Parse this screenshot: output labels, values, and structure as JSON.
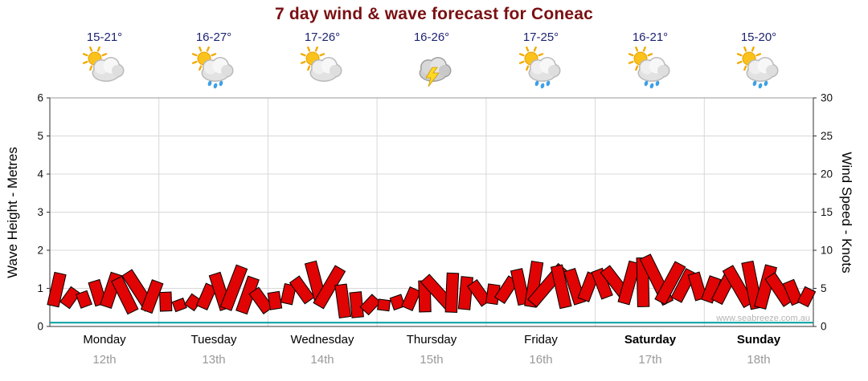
{
  "title": "7 day wind & wave forecast for Coneac",
  "watermark": "www.seabreeze.com.au",
  "colors": {
    "title": "#7a1012",
    "temps": "#1e2472",
    "grid": "#d8d8d8",
    "border": "#9a9a9a",
    "axis": "#333333",
    "flag": "#e00404",
    "flag_outline": "#000000",
    "wave_line": "#009e9e",
    "date": "#999999",
    "watermark": "#b4b4b4"
  },
  "days": [
    {
      "name": "Monday",
      "date": "12th",
      "temp": "15-21°",
      "icon": "sun-cloud"
    },
    {
      "name": "Tuesday",
      "date": "13th",
      "temp": "16-27°",
      "icon": "sun-cloud-showers"
    },
    {
      "name": "Wednesday",
      "date": "14th",
      "temp": "17-26°",
      "icon": "sun-cloud"
    },
    {
      "name": "Thursday",
      "date": "15th",
      "temp": "16-26°",
      "icon": "storm"
    },
    {
      "name": "Friday",
      "date": "16th",
      "temp": "17-25°",
      "icon": "sun-cloud-showers"
    },
    {
      "name": "Saturday",
      "date": "17th",
      "temp": "16-21°",
      "icon": "sun-cloud-showers"
    },
    {
      "name": "Sunday",
      "date": "18th",
      "temp": "15-20°",
      "icon": "sun-cloud-showers"
    }
  ],
  "chart_data": {
    "type": "area",
    "title": "7 day wind & wave forecast for Coneac",
    "categories": [
      "Monday",
      "Tuesday",
      "Wednesday",
      "Thursday",
      "Friday",
      "Saturday",
      "Sunday"
    ],
    "points_per_day": 8,
    "grid": true,
    "legend": "none",
    "left_axis": {
      "label": "Wave Height - Metres",
      "range": [
        0,
        6
      ],
      "ticks": [
        0,
        1,
        2,
        3,
        4,
        5,
        6
      ]
    },
    "right_axis": {
      "label": "Wind Speed - Knots",
      "range": [
        0,
        30
      ],
      "ticks": [
        0,
        5,
        10,
        15,
        20,
        25,
        30
      ]
    },
    "series": [
      {
        "name": "wind-speed-knots",
        "axis": "right",
        "style": "wind-flags",
        "color": "#e00404",
        "values": [
          7,
          5,
          4.5,
          6,
          7,
          6.5,
          7.5,
          6,
          4.5,
          3.5,
          4,
          5.5,
          7,
          8,
          6.5,
          5,
          4.5,
          5.5,
          6.5,
          8.5,
          8,
          5.5,
          4.5,
          4,
          3.5,
          4,
          5,
          6,
          7,
          7,
          6.5,
          6,
          5.5,
          6.5,
          7.5,
          8.5,
          8.5,
          8,
          7.5,
          7,
          7.5,
          8,
          8.5,
          9,
          9.5,
          8.5,
          7.5,
          7,
          6.5,
          7.5,
          8,
          8.5,
          8,
          7,
          6,
          5
        ]
      },
      {
        "name": "wave-height-metres",
        "axis": "left",
        "style": "line",
        "color": "#009e9e",
        "values": [
          0.1,
          0.1,
          0.1,
          0.1,
          0.1,
          0.1,
          0.1,
          0.1
        ]
      }
    ]
  }
}
